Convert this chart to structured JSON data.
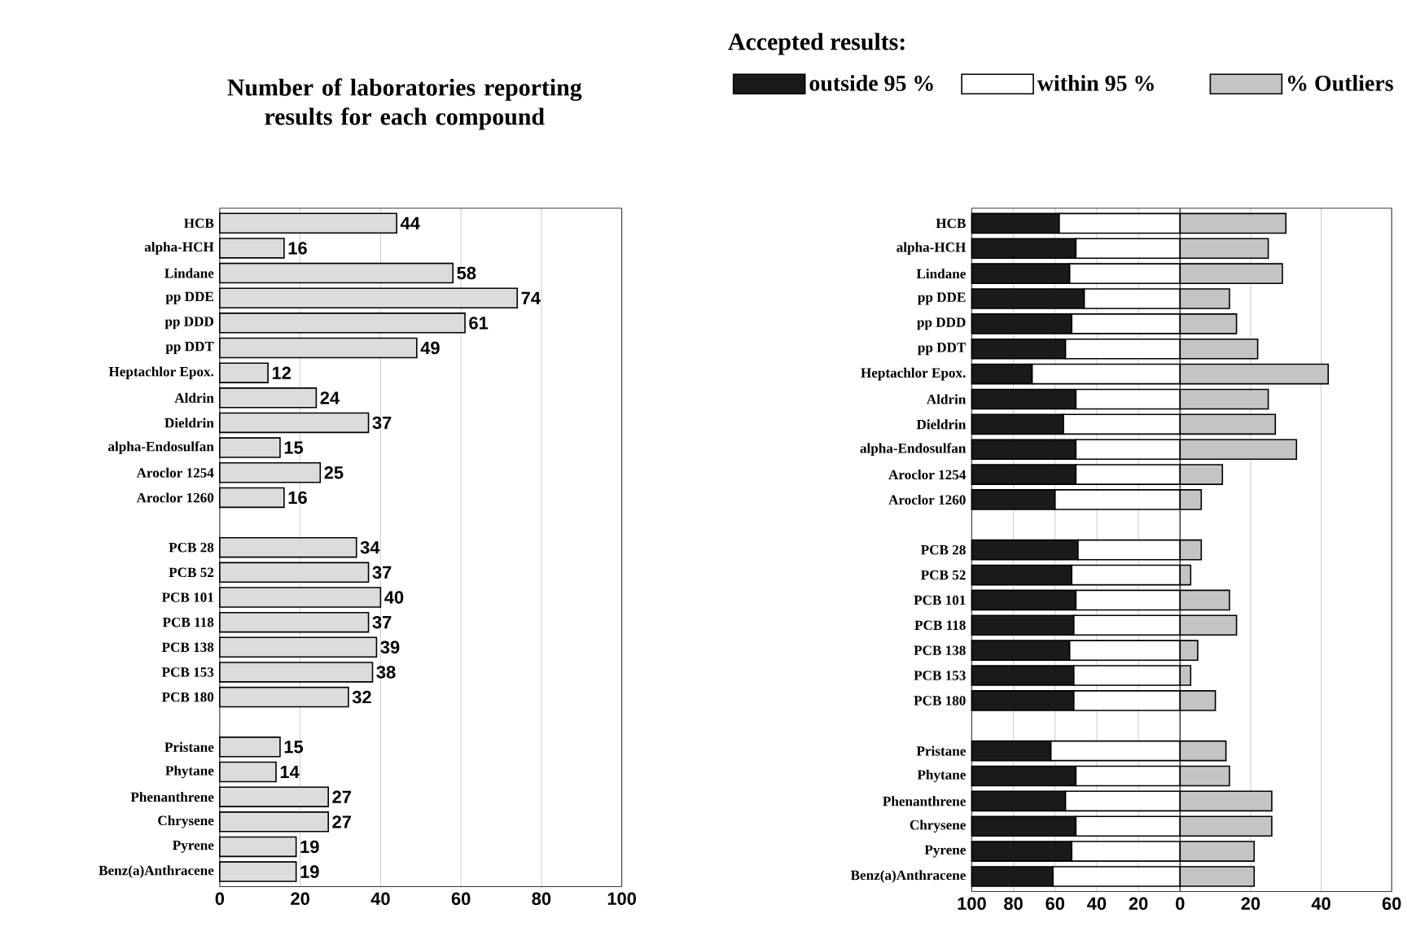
{
  "chart_data": [
    {
      "type": "bar",
      "orientation": "horizontal",
      "title": "Number of laboratories reporting results for each compound",
      "categories": [
        "HCB",
        "alpha-HCH",
        "Lindane",
        "pp  DDE",
        "pp  DDD",
        "pp  DDT",
        "Heptachlor Epox.",
        "Aldrin",
        "Dieldrin",
        "alpha-Endosulfan",
        "Aroclor 1254",
        "Aroclor 1260",
        null,
        "PCB 28",
        "PCB 52",
        "PCB 101",
        "PCB 118",
        "PCB 138",
        "PCB 153",
        "PCB 180",
        null,
        "Pristane",
        "Phytane",
        "Phenanthrene",
        "Chrysene",
        "Pyrene",
        "Benz(a)Anthracene"
      ],
      "values": [
        44,
        16,
        58,
        74,
        61,
        49,
        12,
        24,
        37,
        15,
        25,
        16,
        null,
        34,
        37,
        40,
        37,
        39,
        38,
        32,
        null,
        15,
        14,
        27,
        27,
        19,
        19
      ],
      "color": "#dcdcdc",
      "xlim": [
        0,
        100
      ],
      "xticks": [
        0,
        20,
        40,
        60,
        80,
        100
      ],
      "grid": "x",
      "data_labels": true
    },
    {
      "type": "bar",
      "orientation": "horizontal",
      "stacked": true,
      "legend_title": "Accepted results:",
      "legend": "top",
      "categories": [
        "HCB",
        "alpha-HCH",
        "Lindane",
        "pp  DDE",
        "pp  DDD",
        "pp  DDT",
        "Heptachlor Epox.",
        "Aldrin",
        "Dieldrin",
        "alpha-Endosulfan",
        "Aroclor 1254",
        "Aroclor 1260",
        null,
        "PCB 28",
        "PCB 52",
        "PCB 101",
        "PCB 118",
        "PCB 138",
        "PCB 153",
        "PCB 180",
        null,
        "Pristane",
        "Phytane",
        "Phenanthrene",
        "Chrysene",
        "Pyrene",
        "Benz(a)Anthracene"
      ],
      "series": [
        {
          "name": "within 95 %",
          "color": "#ffffff",
          "values": [
            58,
            50,
            53,
            46,
            52,
            55,
            71,
            50,
            56,
            50,
            50,
            60,
            null,
            49,
            52,
            50,
            51,
            53,
            51,
            51,
            null,
            62,
            50,
            55,
            50,
            52,
            61
          ]
        },
        {
          "name": "outside 95 %",
          "color": "#1a1a1a",
          "values": [
            42,
            50,
            47,
            54,
            48,
            45,
            29,
            50,
            44,
            50,
            50,
            40,
            null,
            51,
            48,
            50,
            49,
            47,
            49,
            49,
            null,
            38,
            50,
            45,
            50,
            48,
            39
          ]
        }
      ],
      "xlim": [
        100,
        0
      ],
      "xticks": [
        100,
        80,
        60,
        40,
        20,
        0
      ],
      "grid": "x"
    },
    {
      "type": "bar",
      "orientation": "horizontal",
      "legend": "top",
      "tick_labels": "x",
      "categories": [
        null,
        null,
        null,
        null,
        null,
        null,
        null,
        null,
        null,
        null,
        null,
        null,
        null,
        null,
        null,
        null,
        null,
        null,
        null,
        null,
        null,
        null,
        null,
        null,
        null,
        null,
        null
      ],
      "series": [
        {
          "name": "% Outliers",
          "color": "#c4c4c4",
          "values": [
            30,
            25,
            29,
            14,
            16,
            22,
            42,
            25,
            27,
            33,
            12,
            6,
            null,
            6,
            3,
            14,
            16,
            5,
            3,
            10,
            null,
            13,
            14,
            26,
            26,
            21,
            21
          ]
        }
      ],
      "xlim": [
        0,
        60
      ],
      "xticks": [
        {
          "value": 0,
          "label": null
        },
        20,
        40,
        60
      ],
      "grid": "x"
    }
  ]
}
